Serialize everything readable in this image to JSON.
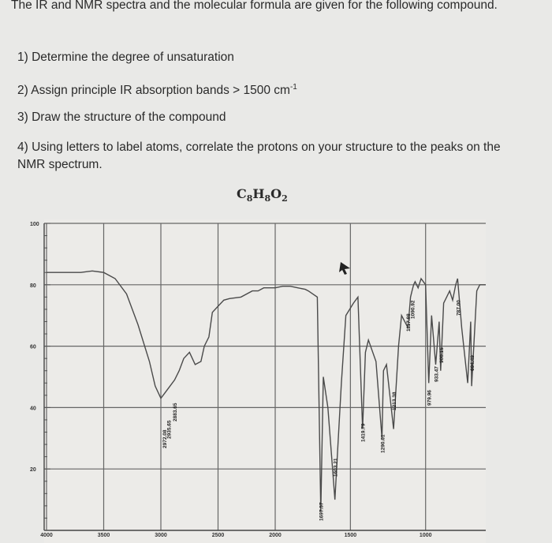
{
  "question": {
    "intro": "The IR and NMR spectra and the molecular formula are given for the following compound.",
    "items": [
      {
        "num": "1)",
        "text": "Determine the degree of unsaturation"
      },
      {
        "num": "2)",
        "text": "Assign principle IR absorption bands > 1500 cm",
        "sup": "-1"
      },
      {
        "num": "3)",
        "text": "Draw the structure of the compound"
      },
      {
        "num": "4)",
        "text": "Using letters to label atoms, correlate the protons on your structure to the peaks on the NMR spectrum."
      }
    ]
  },
  "formula": {
    "c": "C",
    "c_n": "8",
    "h": "H",
    "h_n": "8",
    "o": "O",
    "o_n": "2"
  },
  "chart_data": {
    "type": "line",
    "title": "",
    "xlabel": "",
    "ylabel": "",
    "x_ticks": [
      4000,
      3500,
      3000,
      2500,
      2000,
      1500,
      1000
    ],
    "y_ticks": [
      100,
      80,
      60,
      40,
      20
    ],
    "xlim": [
      4000,
      600
    ],
    "ylim": [
      0,
      100
    ],
    "grid": true,
    "series": [
      {
        "values_x": [
          4000,
          3700,
          3600,
          3500,
          3400,
          3300,
          3200,
          3100,
          3050,
          3000,
          2960,
          2920,
          2880,
          2840,
          2800,
          2750,
          2700,
          2650,
          2620,
          2580,
          2550,
          2500,
          2450,
          2400,
          2300,
          2200,
          2150,
          2100,
          2000,
          1950,
          1900,
          1850,
          1800,
          1780,
          1720,
          1697,
          1680,
          1650,
          1603,
          1560,
          1530,
          1480,
          1450,
          1419,
          1400,
          1380,
          1330,
          1290,
          1280,
          1260,
          1213,
          1180,
          1160,
          1117,
          1100,
          1090,
          1080,
          1070,
          1050,
          1030,
          1000,
          979,
          960,
          933,
          910,
          900,
          880,
          860,
          840,
          820,
          800,
          787,
          760,
          720,
          700,
          694,
          660,
          640,
          620,
          600
        ],
        "values_y": [
          84,
          84,
          84.5,
          84,
          82,
          77,
          67,
          55,
          47,
          43,
          45,
          47,
          49,
          52,
          56,
          58,
          54,
          55,
          60,
          63,
          71,
          73,
          75,
          75.5,
          76,
          78,
          78,
          79,
          79,
          79.5,
          79.5,
          79,
          78.5,
          78,
          76,
          6,
          50,
          40,
          10,
          48,
          70,
          74,
          76,
          33,
          58,
          62,
          55,
          30,
          52,
          54,
          33,
          60,
          70,
          66,
          76,
          78,
          80,
          81,
          79,
          82,
          80,
          48,
          70,
          54,
          68,
          52,
          74,
          76,
          78,
          75,
          80,
          82,
          66,
          48,
          68,
          47,
          78,
          80,
          80,
          80
        ]
      }
    ],
    "peak_labels": [
      "1697.57",
      "1603.21",
      "1419.79",
      "1290.61",
      "1213.38",
      "1117.88",
      "1090.92",
      "979.96",
      "933.47",
      "900.15",
      "787.00",
      "694.49",
      "2972.08",
      "2935.65",
      "2883.65"
    ]
  }
}
